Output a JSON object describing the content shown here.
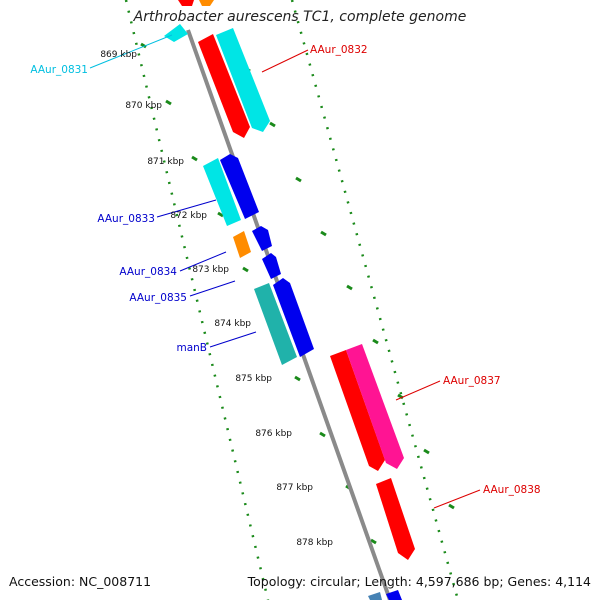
{
  "title": "Arthrobacter aurescens TC1, complete genome",
  "footer": {
    "accession": "Accession: NC_008711",
    "topology": "Topology: circular; Length: 4,597,686 bp; Genes: 4,114"
  },
  "colors": {
    "backbone": "#888888",
    "ticks": "#1a8a1a",
    "red_gene": "#ff0000",
    "cyan_gene": "#00e5e5",
    "blue_gene": "#0000ee",
    "orange_gene": "#ff8c00",
    "teal_gene": "#20b2aa",
    "pink_gene": "#ff1493",
    "red_label": "#dd0000",
    "cyan_label": "#00bfe0",
    "blue_label": "#0000cc"
  },
  "kbp_labels": [
    "869 kbp",
    "870 kbp",
    "871 kbp",
    "872 kbp",
    "873 kbp",
    "874 kbp",
    "875 kbp",
    "876 kbp",
    "877 kbp",
    "878 kbp"
  ],
  "gene_labels": {
    "aaur_0831": "AAur_0831",
    "aaur_0832": "AAur_0832",
    "aaur_0833": "AAur_0833",
    "aaur_0834": "AAur_0834",
    "aaur_0835": "AAur_0835",
    "manb": "manB",
    "aaur_0837": "AAur_0837",
    "aaur_0838": "AAur_0838"
  }
}
